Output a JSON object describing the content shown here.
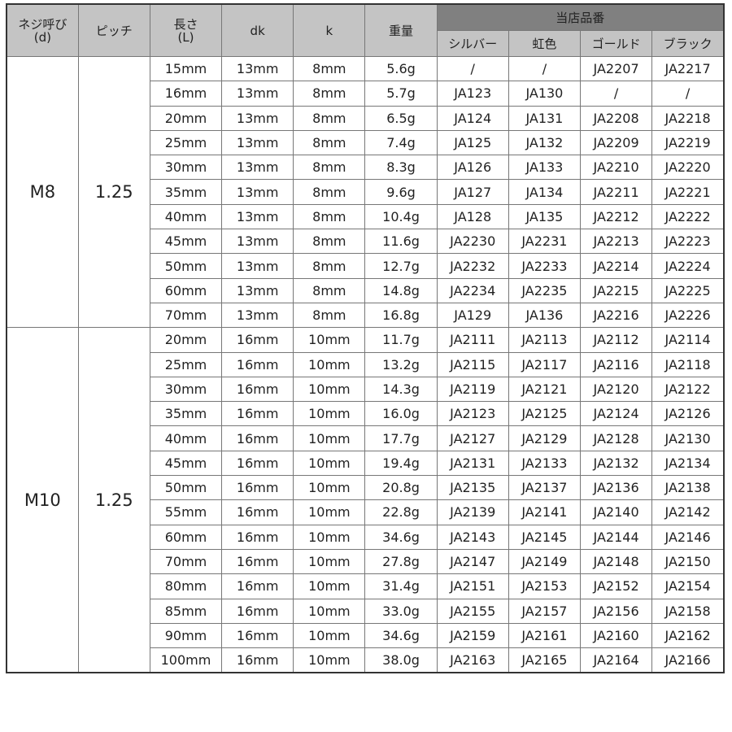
{
  "header": {
    "thread": [
      "ネジ呼び",
      "(d)"
    ],
    "pitch": "ピッチ",
    "length": [
      "長さ",
      "(L)"
    ],
    "dk": "dk",
    "k": "k",
    "weight": "重量",
    "shop_code": "当店品番",
    "colors": [
      "シルバー",
      "虹色",
      "ゴールド",
      "ブラック"
    ]
  },
  "groups": [
    {
      "thread": "M8",
      "pitch": "1.25",
      "rows": [
        [
          "15mm",
          "13mm",
          "8mm",
          "5.6g",
          "/",
          "/",
          "JA2207",
          "JA2217"
        ],
        [
          "16mm",
          "13mm",
          "8mm",
          "5.7g",
          "JA123",
          "JA130",
          "/",
          "/"
        ],
        [
          "20mm",
          "13mm",
          "8mm",
          "6.5g",
          "JA124",
          "JA131",
          "JA2208",
          "JA2218"
        ],
        [
          "25mm",
          "13mm",
          "8mm",
          "7.4g",
          "JA125",
          "JA132",
          "JA2209",
          "JA2219"
        ],
        [
          "30mm",
          "13mm",
          "8mm",
          "8.3g",
          "JA126",
          "JA133",
          "JA2210",
          "JA2220"
        ],
        [
          "35mm",
          "13mm",
          "8mm",
          "9.6g",
          "JA127",
          "JA134",
          "JA2211",
          "JA2221"
        ],
        [
          "40mm",
          "13mm",
          "8mm",
          "10.4g",
          "JA128",
          "JA135",
          "JA2212",
          "JA2222"
        ],
        [
          "45mm",
          "13mm",
          "8mm",
          "11.6g",
          "JA2230",
          "JA2231",
          "JA2213",
          "JA2223"
        ],
        [
          "50mm",
          "13mm",
          "8mm",
          "12.7g",
          "JA2232",
          "JA2233",
          "JA2214",
          "JA2224"
        ],
        [
          "60mm",
          "13mm",
          "8mm",
          "14.8g",
          "JA2234",
          "JA2235",
          "JA2215",
          "JA2225"
        ],
        [
          "70mm",
          "13mm",
          "8mm",
          "16.8g",
          "JA129",
          "JA136",
          "JA2216",
          "JA2226"
        ]
      ]
    },
    {
      "thread": "M10",
      "pitch": "1.25",
      "rows": [
        [
          "20mm",
          "16mm",
          "10mm",
          "11.7g",
          "JA2111",
          "JA2113",
          "JA2112",
          "JA2114"
        ],
        [
          "25mm",
          "16mm",
          "10mm",
          "13.2g",
          "JA2115",
          "JA2117",
          "JA2116",
          "JA2118"
        ],
        [
          "30mm",
          "16mm",
          "10mm",
          "14.3g",
          "JA2119",
          "JA2121",
          "JA2120",
          "JA2122"
        ],
        [
          "35mm",
          "16mm",
          "10mm",
          "16.0g",
          "JA2123",
          "JA2125",
          "JA2124",
          "JA2126"
        ],
        [
          "40mm",
          "16mm",
          "10mm",
          "17.7g",
          "JA2127",
          "JA2129",
          "JA2128",
          "JA2130"
        ],
        [
          "45mm",
          "16mm",
          "10mm",
          "19.4g",
          "JA2131",
          "JA2133",
          "JA2132",
          "JA2134"
        ],
        [
          "50mm",
          "16mm",
          "10mm",
          "20.8g",
          "JA2135",
          "JA2137",
          "JA2136",
          "JA2138"
        ],
        [
          "55mm",
          "16mm",
          "10mm",
          "22.8g",
          "JA2139",
          "JA2141",
          "JA2140",
          "JA2142"
        ],
        [
          "60mm",
          "16mm",
          "10mm",
          "34.6g",
          "JA2143",
          "JA2145",
          "JA2144",
          "JA2146"
        ],
        [
          "70mm",
          "16mm",
          "10mm",
          "27.8g",
          "JA2147",
          "JA2149",
          "JA2148",
          "JA2150"
        ],
        [
          "80mm",
          "16mm",
          "10mm",
          "31.4g",
          "JA2151",
          "JA2153",
          "JA2152",
          "JA2154"
        ],
        [
          "85mm",
          "16mm",
          "10mm",
          "33.0g",
          "JA2155",
          "JA2157",
          "JA2156",
          "JA2158"
        ],
        [
          "90mm",
          "16mm",
          "10mm",
          "34.6g",
          "JA2159",
          "JA2161",
          "JA2160",
          "JA2162"
        ],
        [
          "100mm",
          "16mm",
          "10mm",
          "38.0g",
          "JA2163",
          "JA2165",
          "JA2164",
          "JA2166"
        ]
      ]
    }
  ]
}
